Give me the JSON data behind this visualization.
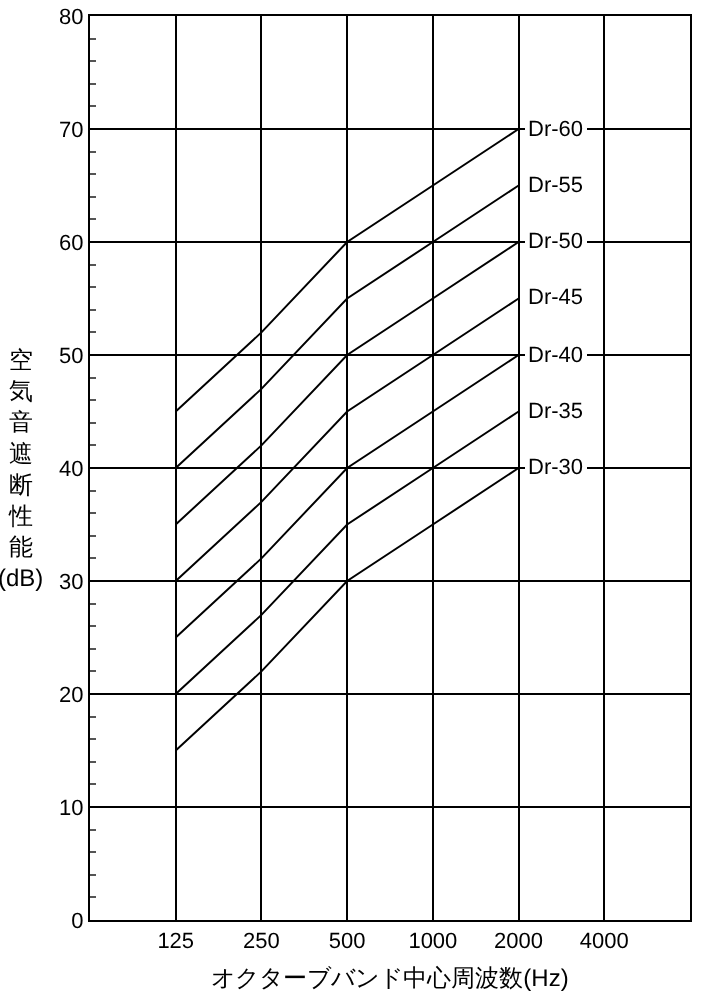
{
  "chart_data": {
    "type": "line",
    "xlabel": "オクターブバンド中心周波数(Hz)",
    "ylabel": "空気音遮断性能(dB)",
    "x": [
      125,
      250,
      500,
      1000,
      2000
    ],
    "series": [
      {
        "name": "Dr-60",
        "color": "#000000",
        "values": [
          45,
          52,
          60,
          65,
          70
        ]
      },
      {
        "name": "Dr-55",
        "color": "#000000",
        "values": [
          40,
          47,
          55,
          60,
          65
        ]
      },
      {
        "name": "Dr-50",
        "color": "#000000",
        "values": [
          35,
          42,
          50,
          55,
          60
        ]
      },
      {
        "name": "Dr-45",
        "color": "#000000",
        "values": [
          30,
          37,
          45,
          50,
          55
        ]
      },
      {
        "name": "Dr-40",
        "color": "#000000",
        "values": [
          25,
          32,
          40,
          45,
          50
        ]
      },
      {
        "name": "Dr-35",
        "color": "#000000",
        "values": [
          20,
          27,
          35,
          40,
          45
        ]
      },
      {
        "name": "Dr-30",
        "color": "#000000",
        "values": [
          15,
          22,
          30,
          35,
          40
        ]
      }
    ],
    "log": "x",
    "xlim": [
      62.5,
      8000
    ],
    "xticks": [
      125,
      250,
      500,
      1000,
      2000,
      4000
    ],
    "ylim": [
      0,
      80
    ],
    "yticks": [
      0,
      10,
      20,
      30,
      40,
      50,
      60,
      70,
      80
    ],
    "grid": true,
    "legend": false,
    "marker": "none",
    "line_style": "solid"
  }
}
